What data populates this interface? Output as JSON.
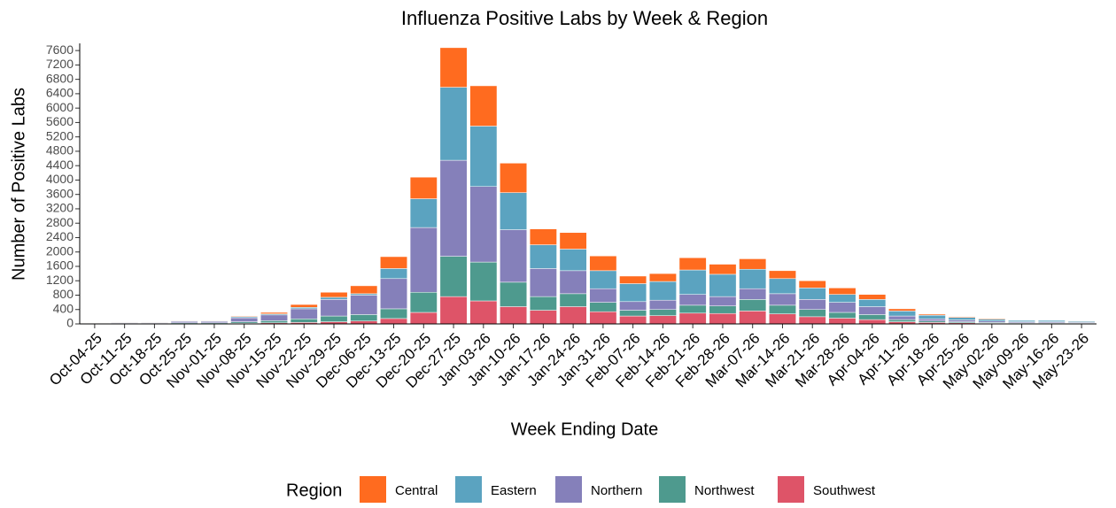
{
  "chart_data": {
    "type": "stacked_bar",
    "title": "Influenza Positive Labs by Week & Region",
    "x_label": "Week Ending Date",
    "y_label": "Number of Positive Labs",
    "legend_title": "Region",
    "categories": [
      "Oct-04-25",
      "Oct-11-25",
      "Oct-18-25",
      "Oct-25-25",
      "Nov-01-25",
      "Nov-08-25",
      "Nov-15-25",
      "Nov-22-25",
      "Nov-29-25",
      "Dec-06-25",
      "Dec-13-25",
      "Dec-20-25",
      "Dec-27-25",
      "Jan-03-26",
      "Jan-10-26",
      "Jan-17-26",
      "Jan-24-26",
      "Jan-31-26",
      "Feb-07-26",
      "Feb-14-26",
      "Feb-21-26",
      "Feb-28-26",
      "Mar-07-26",
      "Mar-14-26",
      "Mar-21-26",
      "Mar-28-26",
      "Apr-04-26",
      "Apr-11-26",
      "Apr-18-26",
      "Apr-25-26",
      "May-02-26",
      "May-09-26",
      "May-16-26",
      "May-23-26"
    ],
    "series": [
      {
        "name": "Central",
        "color": "#FF6B1F",
        "values": [
          5,
          5,
          5,
          5,
          5,
          20,
          40,
          80,
          140,
          220,
          330,
          600,
          1100,
          1120,
          820,
          440,
          460,
          410,
          210,
          220,
          340,
          280,
          290,
          220,
          200,
          180,
          140,
          60,
          30,
          20,
          20,
          10,
          10,
          10
        ]
      },
      {
        "name": "Eastern",
        "color": "#5BA3C0",
        "values": [
          5,
          10,
          10,
          15,
          15,
          30,
          30,
          40,
          60,
          40,
          280,
          800,
          2030,
          1680,
          1030,
          660,
          600,
          500,
          500,
          520,
          680,
          620,
          540,
          420,
          320,
          220,
          200,
          140,
          100,
          70,
          50,
          40,
          40,
          30
        ]
      },
      {
        "name": "Northern",
        "color": "#8580BA",
        "values": [
          10,
          20,
          20,
          40,
          40,
          110,
          160,
          280,
          460,
          540,
          840,
          1800,
          2670,
          2100,
          1460,
          780,
          640,
          380,
          240,
          260,
          300,
          260,
          300,
          320,
          280,
          280,
          220,
          100,
          60,
          50,
          40,
          30,
          30,
          20
        ]
      },
      {
        "name": "Northwest",
        "color": "#4E9A8E",
        "values": [
          5,
          10,
          10,
          20,
          20,
          40,
          60,
          100,
          160,
          180,
          270,
          560,
          1120,
          1080,
          680,
          380,
          360,
          260,
          160,
          170,
          220,
          210,
          320,
          240,
          200,
          160,
          140,
          60,
          40,
          30,
          20,
          15,
          15,
          10
        ]
      },
      {
        "name": "Southwest",
        "color": "#DE5468",
        "values": [
          5,
          5,
          5,
          10,
          10,
          20,
          30,
          40,
          60,
          80,
          150,
          320,
          760,
          640,
          480,
          380,
          480,
          340,
          220,
          230,
          300,
          290,
          360,
          280,
          200,
          160,
          120,
          60,
          40,
          30,
          20,
          15,
          15,
          10
        ]
      }
    ],
    "ylim": [
      0,
      7800
    ],
    "yticks": [
      0,
      400,
      800,
      1200,
      1600,
      2000,
      2400,
      2800,
      3200,
      3600,
      4000,
      4400,
      4800,
      5200,
      5600,
      6000,
      6400,
      6800,
      7200,
      7600
    ]
  }
}
